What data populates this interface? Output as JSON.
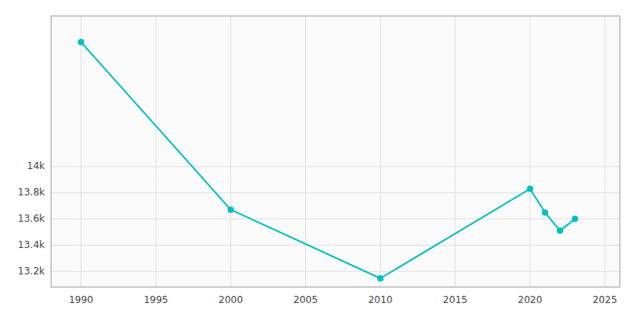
{
  "chart_data": {
    "type": "line",
    "x": [
      1990,
      2000,
      2010,
      2020,
      2021,
      2022,
      2023
    ],
    "values": [
      14950,
      13671,
      13147,
      13830,
      13650,
      13510,
      13600
    ],
    "color": "#00BFBF",
    "marker": "circle",
    "xlim": [
      1988,
      2026
    ],
    "ylim": [
      13080,
      15150
    ],
    "xticks": [
      1990,
      1995,
      2000,
      2005,
      2010,
      2015,
      2020,
      2025
    ],
    "yticks": [
      {
        "value": 13200,
        "label": "13.2k"
      },
      {
        "value": 13400,
        "label": "13.4k"
      },
      {
        "value": 13600,
        "label": "13.6k"
      },
      {
        "value": 13800,
        "label": "13.8k"
      },
      {
        "value": 14000,
        "label": "14k"
      }
    ],
    "grid": true
  }
}
